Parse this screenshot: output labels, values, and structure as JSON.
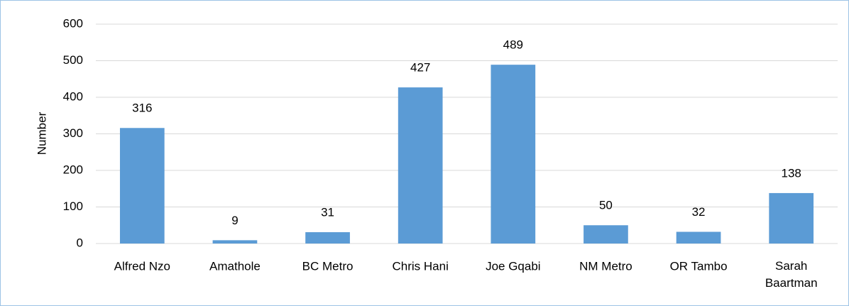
{
  "chart_data": {
    "type": "bar",
    "y_label": "Number",
    "categories": [
      "Alfred Nzo",
      "Amathole",
      "BC Metro",
      "Chris Hani",
      "Joe Gqabi",
      "NM Metro",
      "OR Tambo",
      "Sarah Baartman"
    ],
    "values": [
      316,
      9,
      31,
      427,
      489,
      50,
      32,
      138
    ],
    "color": "#5b9bd5",
    "ylim": [
      0,
      600
    ],
    "yticks": [
      0,
      100,
      200,
      300,
      400,
      500,
      600
    ],
    "grid": true
  }
}
